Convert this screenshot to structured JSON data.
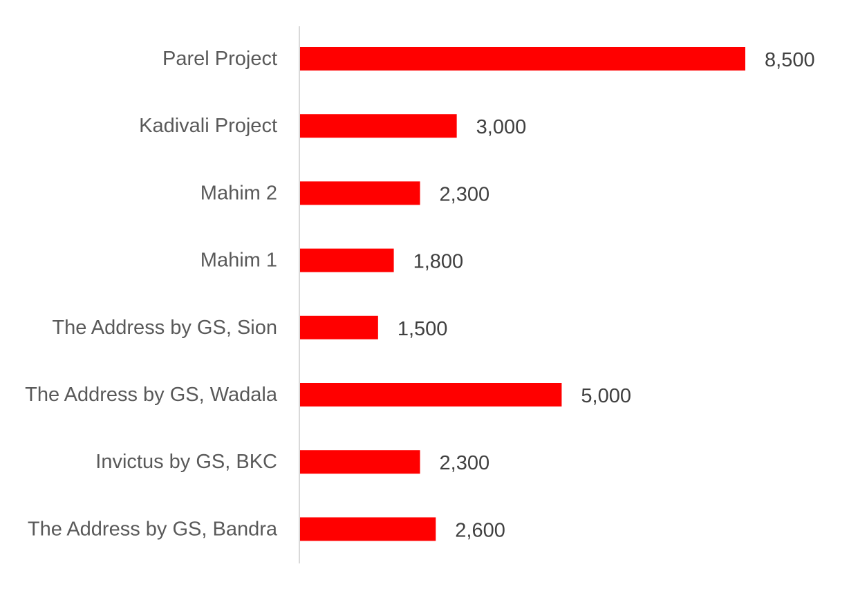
{
  "chart_data": {
    "type": "bar",
    "orientation": "horizontal",
    "categories": [
      "Parel Project",
      "Kadivali Project",
      "Mahim 2",
      "Mahim 1",
      "The Address by GS, Sion",
      "The Address by GS, Wadala",
      "Invictus by GS, BKC",
      "The Address by GS, Bandra"
    ],
    "values": [
      8500,
      3000,
      2300,
      1800,
      1500,
      5000,
      2300,
      2600
    ],
    "data_labels": [
      "8,500",
      "3,000",
      "2,300",
      "1,800",
      "1,500",
      "5,000",
      "2,300",
      "2,600"
    ],
    "xlim": [
      0,
      9000
    ],
    "grid": false,
    "legend": "none",
    "bar_color": "#FF0000",
    "axis_color": "#D9D9D9"
  }
}
